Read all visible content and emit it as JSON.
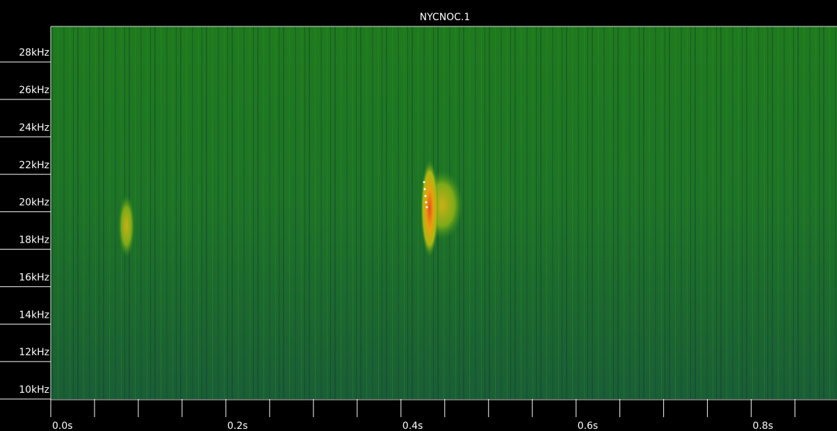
{
  "chart_data": {
    "type": "spectrogram",
    "title": "NYCNOC.1",
    "ylim": [
      10,
      29.9
    ],
    "yticks": [
      {
        "value": 10,
        "label": "10kHz"
      },
      {
        "value": 12,
        "label": "12kHz"
      },
      {
        "value": 14,
        "label": "14kHz"
      },
      {
        "value": 16,
        "label": "16kHz"
      },
      {
        "value": 18,
        "label": "18kHz"
      },
      {
        "value": 20,
        "label": "20kHz"
      },
      {
        "value": 22,
        "label": "22kHz"
      },
      {
        "value": 24,
        "label": "24kHz"
      },
      {
        "value": 26,
        "label": "26kHz"
      },
      {
        "value": 28,
        "label": "28kHz"
      }
    ],
    "xlim": [
      0,
      0.898
    ],
    "xticks": [
      {
        "value": 0,
        "label": "0.0s"
      },
      {
        "value": 0.2,
        "label": "0.2s"
      },
      {
        "value": 0.4,
        "label": "0.4s"
      },
      {
        "value": 0.6,
        "label": "0.6s"
      },
      {
        "value": 0.8,
        "label": "0.8s"
      }
    ],
    "xticks_minor": [
      0.05,
      0.1,
      0.15,
      0.25,
      0.3,
      0.35,
      0.45,
      0.5,
      0.55,
      0.65,
      0.7,
      0.75,
      0.85
    ]
  }
}
